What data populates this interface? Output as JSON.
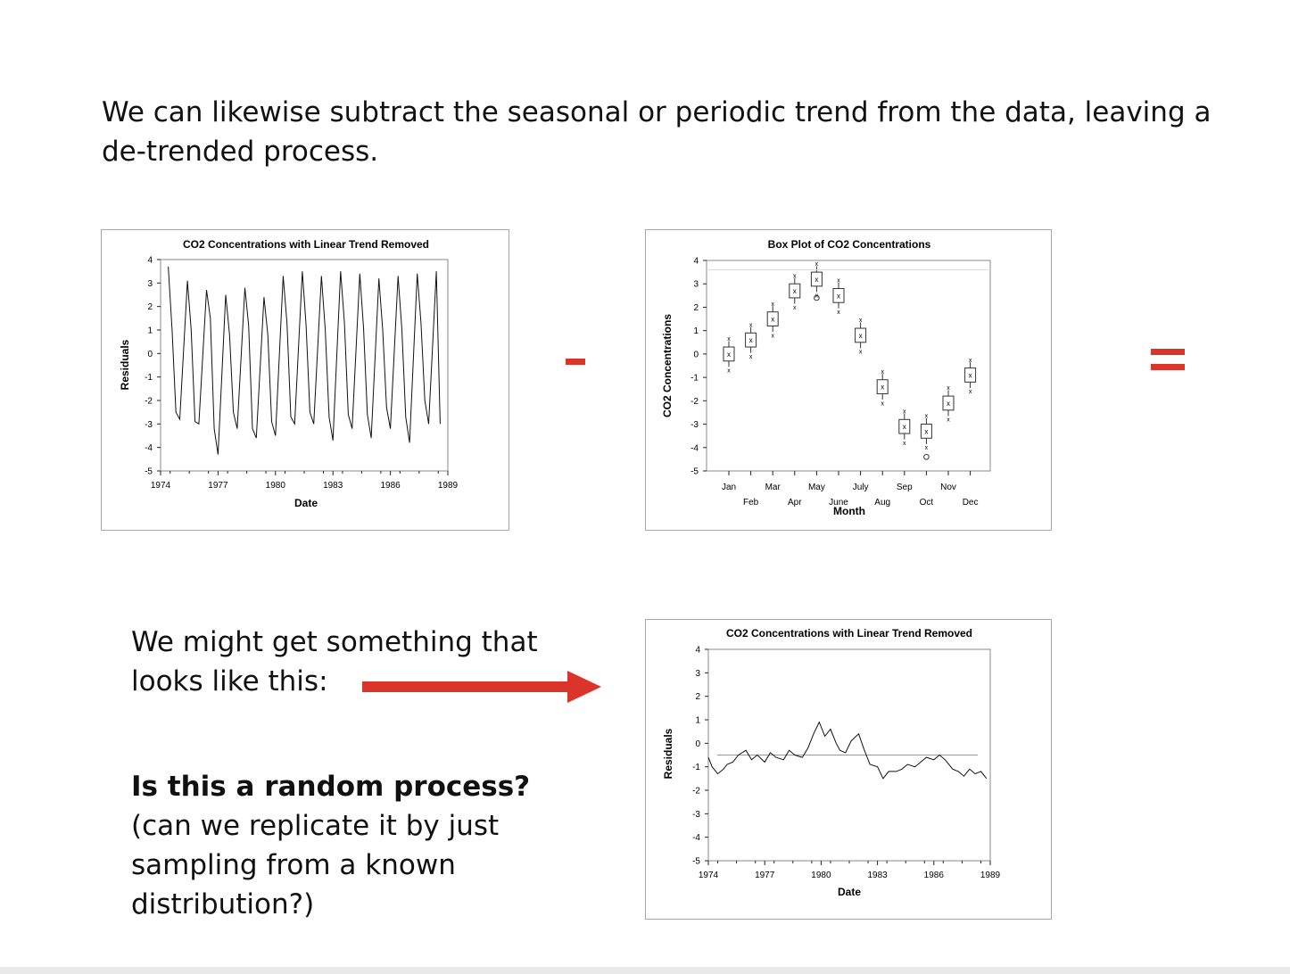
{
  "intro_text": "We can likewise subtract the seasonal or periodic trend from the data, leaving a de-trended process.",
  "minus_color": "#d9352a",
  "arrow_color": "#d9352a",
  "might_text": "We might get something that looks like this:",
  "question_bold": "Is this a random process?",
  "question_rest": " (can we replicate it by just sampling from a known distribution?)",
  "chart_data": [
    {
      "type": "line",
      "title": "CO2 Concentrations with Linear Trend Removed",
      "xlabel": "Date",
      "ylabel": "Residuals",
      "xlim": [
        1974,
        1989
      ],
      "ylim": [
        -5,
        4
      ],
      "xticks": [
        "1974",
        "1977",
        "1980",
        "1983",
        "1986",
        "1989"
      ],
      "yticks": [
        "4",
        "3",
        "2",
        "1",
        "0",
        "-1",
        "-2",
        "-3",
        "-4",
        "-5"
      ],
      "x": [
        1974.4,
        1974.6,
        1974.8,
        1975.0,
        1975.4,
        1975.6,
        1975.8,
        1976.0,
        1976.4,
        1976.6,
        1976.8,
        1977.0,
        1977.4,
        1977.6,
        1977.8,
        1978.0,
        1978.4,
        1978.6,
        1978.8,
        1979.0,
        1979.4,
        1979.6,
        1979.8,
        1980.0,
        1980.4,
        1980.6,
        1980.8,
        1981.0,
        1981.4,
        1981.6,
        1981.8,
        1982.0,
        1982.4,
        1982.6,
        1982.8,
        1983.0,
        1983.4,
        1983.6,
        1983.8,
        1984.0,
        1984.4,
        1984.6,
        1984.8,
        1985.0,
        1985.4,
        1985.6,
        1985.8,
        1986.0,
        1986.4,
        1986.6,
        1986.8,
        1987.0,
        1987.4,
        1987.6,
        1987.8,
        1988.0,
        1988.4,
        1988.6
      ],
      "values": [
        3.7,
        1.0,
        -2.5,
        -2.8,
        3.1,
        1.0,
        -2.9,
        -3.0,
        2.7,
        1.5,
        -3.2,
        -4.3,
        2.5,
        0.8,
        -2.5,
        -3.2,
        2.8,
        1.2,
        -3.2,
        -3.6,
        2.4,
        0.8,
        -2.9,
        -3.5,
        3.3,
        1.3,
        -2.7,
        -3.0,
        3.5,
        1.2,
        -2.5,
        -3.0,
        3.3,
        1.0,
        -2.7,
        -3.7,
        3.5,
        1.3,
        -2.6,
        -3.2,
        3.4,
        1.1,
        -2.6,
        -3.6,
        3.2,
        1.0,
        -2.3,
        -3.2,
        3.3,
        1.0,
        -2.7,
        -3.8,
        3.4,
        1.3,
        -2.0,
        -3.0,
        3.5,
        -3.0
      ],
      "grid": false
    },
    {
      "type": "box",
      "title": "Box Plot of CO2 Concentrations",
      "xlabel": "Month",
      "ylabel": "CO2 Concentrations",
      "ylim": [
        -5,
        4
      ],
      "yticks": [
        "4",
        "3",
        "2",
        "1",
        "0",
        "-1",
        "-2",
        "-3",
        "-4",
        "-5"
      ],
      "categories": [
        "Jan",
        "Feb",
        "Mar",
        "Apr",
        "May",
        "June",
        "July",
        "Aug",
        "Sep",
        "Oct",
        "Nov",
        "Dec"
      ],
      "medians": [
        0.0,
        0.6,
        1.5,
        2.7,
        3.2,
        2.5,
        0.8,
        -1.4,
        -3.1,
        -3.3,
        -2.1,
        -0.9
      ],
      "outliers": {
        "May": [
          2.4
        ],
        "Oct": [
          -4.4
        ]
      }
    },
    {
      "type": "line",
      "title": "CO2 Concentrations with Linear Trend Removed",
      "xlabel": "Date",
      "ylabel": "Residuals",
      "xlim": [
        1974,
        1989
      ],
      "ylim": [
        -5,
        4
      ],
      "xticks": [
        "1974",
        "1977",
        "1980",
        "1983",
        "1986",
        "1989"
      ],
      "yticks": [
        "4",
        "3",
        "2",
        "1",
        "0",
        "-1",
        "-2",
        "-3",
        "-4",
        "-5"
      ],
      "x": [
        1974.0,
        1974.2,
        1974.5,
        1974.8,
        1975.0,
        1975.3,
        1975.6,
        1976.0,
        1976.3,
        1976.6,
        1977.0,
        1977.3,
        1977.6,
        1978.0,
        1978.3,
        1978.6,
        1979.0,
        1979.3,
        1979.6,
        1979.9,
        1980.2,
        1980.5,
        1980.8,
        1981.0,
        1981.3,
        1981.6,
        1982.0,
        1982.3,
        1982.6,
        1983.0,
        1983.3,
        1983.6,
        1984.0,
        1984.3,
        1984.6,
        1985.0,
        1985.3,
        1985.6,
        1986.0,
        1986.3,
        1986.6,
        1987.0,
        1987.3,
        1987.6,
        1987.9,
        1988.2,
        1988.5,
        1988.8
      ],
      "values": [
        -0.6,
        -1.0,
        -1.3,
        -1.1,
        -0.9,
        -0.8,
        -0.5,
        -0.3,
        -0.7,
        -0.5,
        -0.8,
        -0.4,
        -0.6,
        -0.7,
        -0.3,
        -0.5,
        -0.6,
        -0.2,
        0.4,
        0.9,
        0.3,
        0.6,
        0.0,
        -0.3,
        -0.4,
        0.1,
        0.4,
        -0.3,
        -0.9,
        -1.0,
        -1.5,
        -1.2,
        -1.2,
        -1.1,
        -0.9,
        -1.0,
        -0.8,
        -0.6,
        -0.7,
        -0.5,
        -0.7,
        -1.1,
        -1.2,
        -1.4,
        -1.1,
        -1.3,
        -1.2,
        -1.5
      ],
      "reference_line": -0.5,
      "grid": false
    }
  ]
}
